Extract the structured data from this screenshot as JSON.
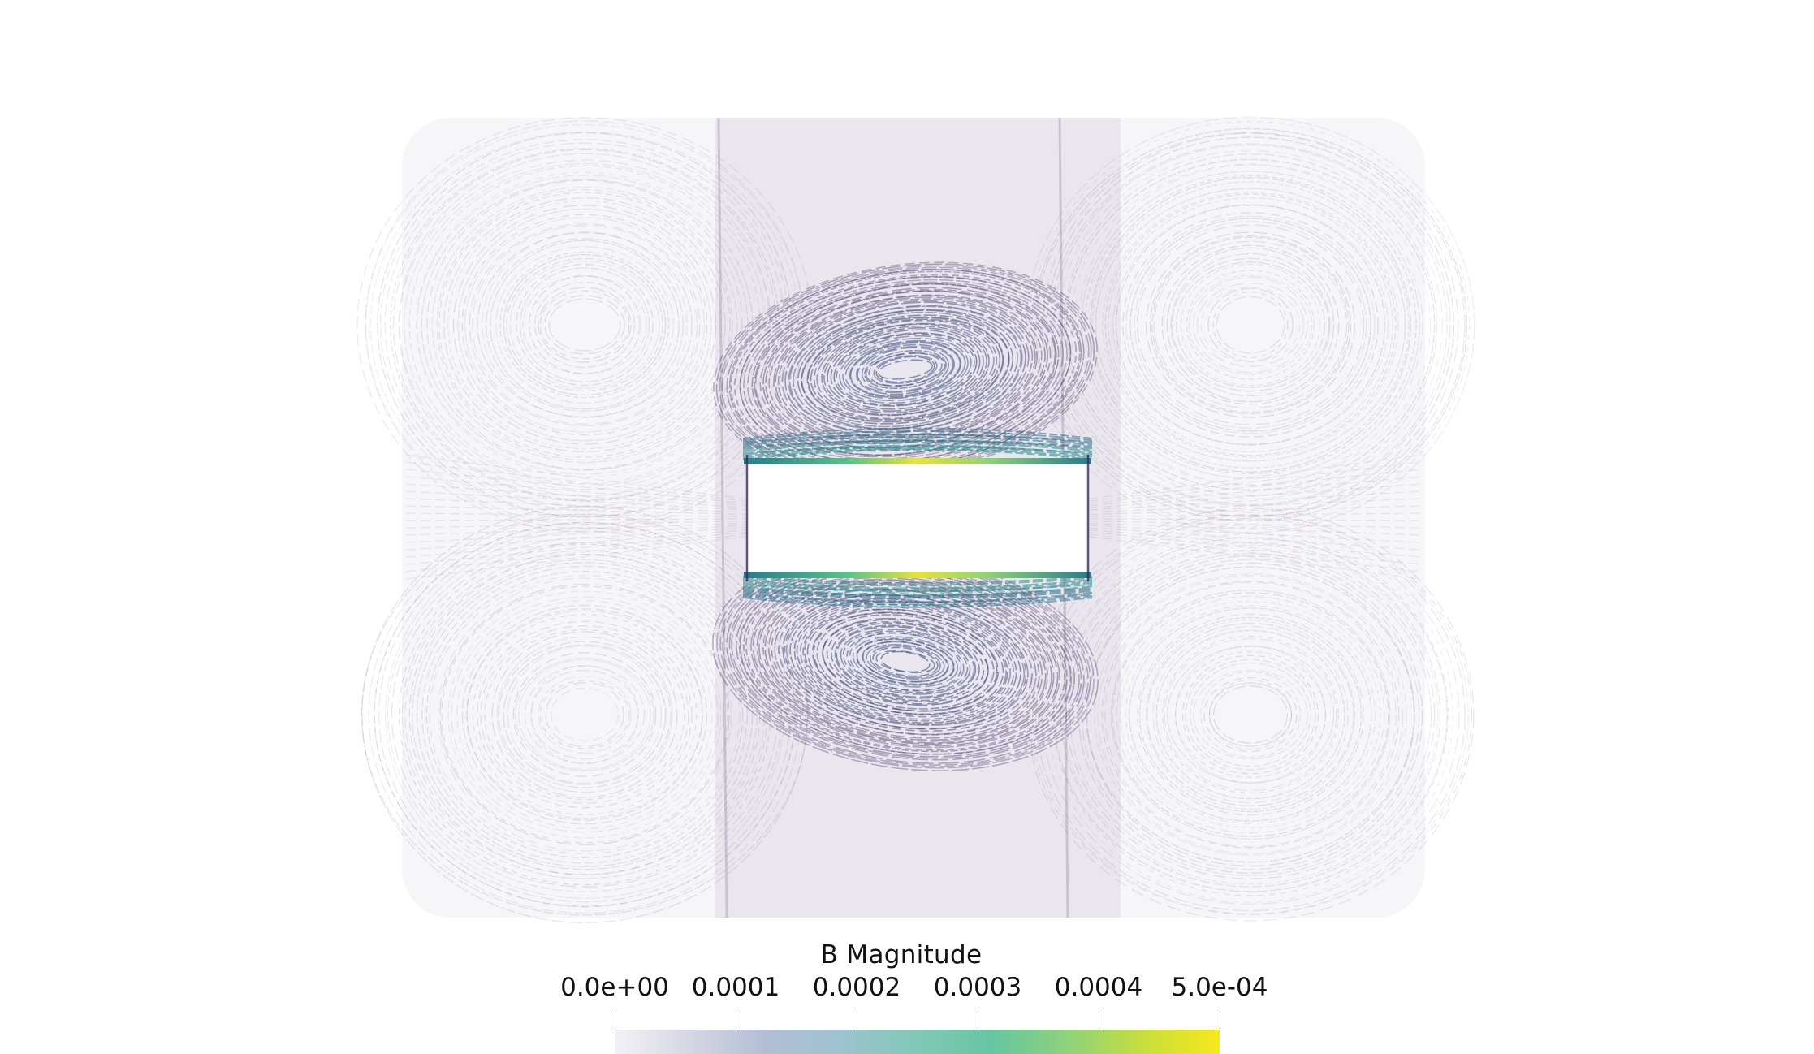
{
  "colorbar": {
    "title": "B Magnitude",
    "ticks": [
      "0.0e+00",
      "0.0001",
      "0.0002",
      "0.0003",
      "0.0004",
      "5.0e-04"
    ],
    "range": [
      0,
      0.0005
    ],
    "colormap": [
      "#f2f2f6",
      "#d6d6e4",
      "#b2bed5",
      "#9cc3cf",
      "#82c8b7",
      "#66c6a2",
      "#8fd27a",
      "#c8de3c",
      "#f7e81c"
    ]
  },
  "colors": {
    "low": "#3b2a55",
    "mid": "#2d6a8a",
    "high": "#f2e33a"
  }
}
